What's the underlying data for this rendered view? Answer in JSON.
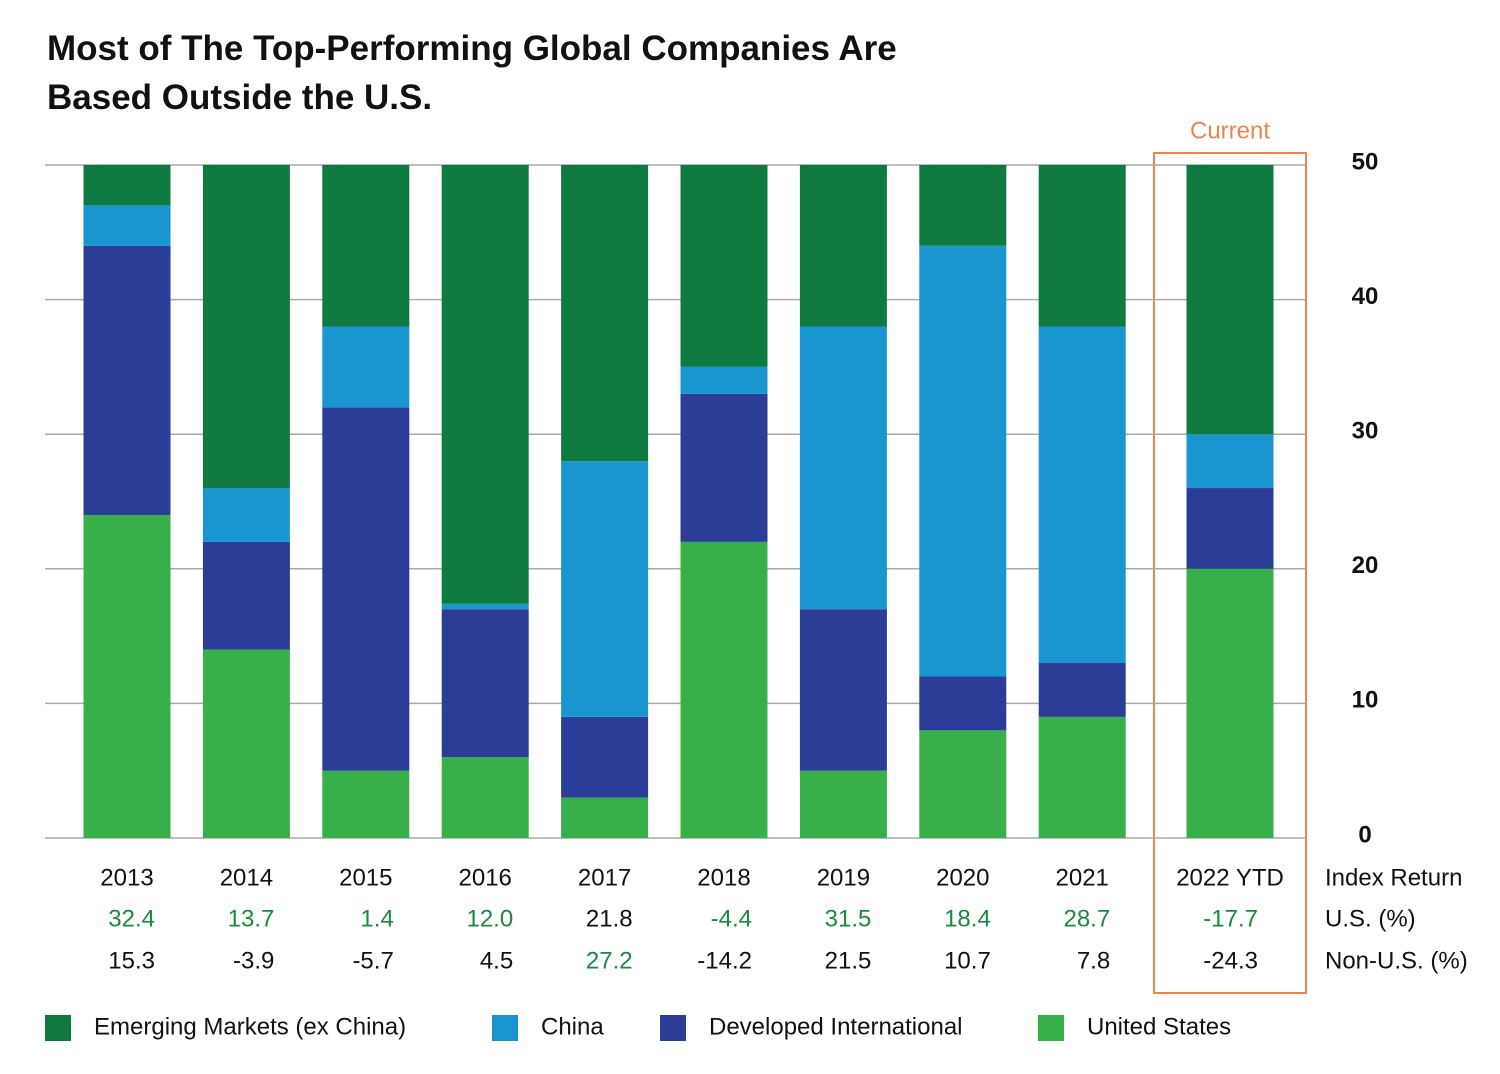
{
  "chart_data": {
    "type": "stacked_bar",
    "title": "Most of The Top-Performing Global Companies Are Based Outside the U.S.",
    "annotation": "Current",
    "categories": [
      "2013",
      "2014",
      "2015",
      "2016",
      "2017",
      "2018",
      "2019",
      "2020",
      "2021",
      "2022 YTD"
    ],
    "series": [
      {
        "name": "Emerging Markets (ex China)",
        "color": "#0e7a3f",
        "values": [
          3,
          24,
          12,
          32.6,
          22,
          15,
          12,
          6,
          12,
          20
        ]
      },
      {
        "name": "China",
        "color": "#1996d0",
        "values": [
          3,
          4,
          6,
          0.4,
          19,
          2,
          21,
          32,
          25,
          4
        ]
      },
      {
        "name": "Developed International",
        "color": "#2b3d96",
        "values": [
          20,
          8,
          27,
          11,
          6,
          11,
          12,
          4,
          4,
          6
        ]
      },
      {
        "name": "United States",
        "color": "#37b04a",
        "values": [
          24,
          14,
          5,
          6,
          3,
          22,
          5,
          8,
          9,
          20
        ]
      }
    ],
    "ylim": [
      0,
      50
    ],
    "yticks": [
      0,
      10,
      20,
      30,
      40,
      50
    ],
    "grid": true,
    "returns": {
      "header": "Index Return",
      "rows": [
        {
          "label": "U.S. (%)",
          "values": [
            "32.4",
            "13.7",
            "1.4",
            "12.0",
            "21.8",
            "-4.4",
            "31.5",
            "18.4",
            "28.7",
            "-17.7"
          ]
        },
        {
          "label": "Non-U.S. (%)",
          "values": [
            "15.3",
            "-3.9",
            "-5.7",
            "4.5",
            "27.2",
            "-14.2",
            "21.5",
            "10.7",
            "7.8",
            "-24.3"
          ]
        }
      ]
    }
  }
}
